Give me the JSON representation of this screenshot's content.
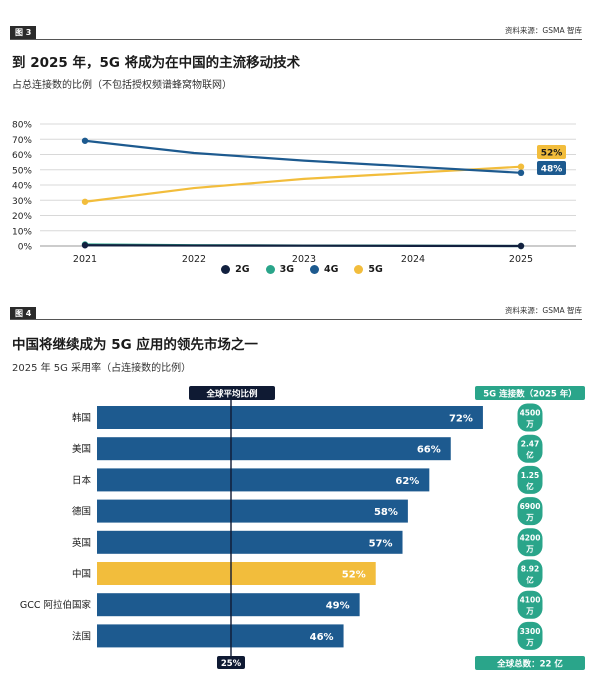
{
  "figure3": {
    "tag": "图 3",
    "source": "资料来源：GSMA 智库",
    "title": "到 2025 年，5G 将成为在中国的主流移动技术",
    "subtitle": "占总连接数的比例（不包括授权频谱蜂窝物联网）"
  },
  "figure4": {
    "tag": "图 4",
    "source": "资料来源：GSMA 智库",
    "title": "中国将继续成为 5G 应用的领先市场之一",
    "subtitle": "2025 年 5G 采用率（占连接数的比例）"
  },
  "chart_data": [
    {
      "type": "line",
      "title": "到 2025 年，5G 将成为在中国的主流移动技术",
      "subtitle": "占总连接数的比例（不包括授权频谱蜂窝物联网）",
      "x": [
        2021,
        2022,
        2023,
        2024,
        2025
      ],
      "y_ticks": [
        "0%",
        "10%",
        "20%",
        "30%",
        "40%",
        "50%",
        "60%",
        "70%",
        "80%"
      ],
      "ylim": [
        0,
        80
      ],
      "legend_position": "bottom",
      "end_labels": {
        "5G": "52%",
        "4G": "48%"
      },
      "series": [
        {
          "name": "2G",
          "color": "#12203f",
          "values": [
            0.5,
            0.3,
            0.2,
            0.1,
            0
          ]
        },
        {
          "name": "3G",
          "color": "#2aa58a",
          "values": [
            1,
            0.5,
            0.3,
            0.2,
            0
          ]
        },
        {
          "name": "4G",
          "color": "#1d5a8f",
          "values": [
            69,
            61,
            56,
            52,
            48
          ]
        },
        {
          "name": "5G",
          "color": "#f2bd3c",
          "values": [
            29,
            38,
            44,
            48,
            52
          ]
        }
      ]
    },
    {
      "type": "bar",
      "orientation": "horizontal",
      "title": "中国将继续成为 5G 应用的领先市场之一",
      "subtitle": "2025 年 5G 采用率（占连接数的比例）",
      "xlim": [
        0,
        100
      ],
      "categories": [
        "韩国",
        "美国",
        "日本",
        "德国",
        "英国",
        "中国",
        "GCC 阿拉伯国家",
        "法国"
      ],
      "values": [
        72,
        66,
        62,
        58,
        57,
        52,
        49,
        46
      ],
      "value_labels": [
        "72%",
        "66%",
        "62%",
        "58%",
        "57%",
        "52%",
        "49%",
        "46%"
      ],
      "highlight": "中国",
      "bar_color": "#1d5a8f",
      "highlight_color": "#f2bd3c",
      "reference_line": {
        "value": 25,
        "label": "全球平均比例",
        "value_label": "25%"
      },
      "connections_header": "5G 连接数（2025 年）",
      "connections": [
        [
          "4500",
          "万"
        ],
        [
          "2.47",
          "亿"
        ],
        [
          "1.25",
          "亿"
        ],
        [
          "6900",
          "万"
        ],
        [
          "4200",
          "万"
        ],
        [
          "8.92",
          "亿"
        ],
        [
          "4100",
          "万"
        ],
        [
          "3300",
          "万"
        ]
      ],
      "connections_color": "#2aa58a",
      "global_total": "全球总数：22 亿"
    }
  ]
}
